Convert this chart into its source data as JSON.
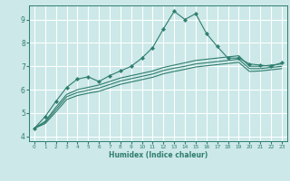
{
  "background_color": "#cce8e8",
  "grid_color": "#ffffff",
  "line_color": "#2e7d6e",
  "xlabel": "Humidex (Indice chaleur)",
  "xlim": [
    -0.5,
    23.5
  ],
  "ylim": [
    3.8,
    9.6
  ],
  "yticks": [
    4,
    5,
    6,
    7,
    8,
    9
  ],
  "xticks": [
    0,
    1,
    2,
    3,
    4,
    5,
    6,
    7,
    8,
    9,
    10,
    11,
    12,
    13,
    14,
    15,
    16,
    17,
    18,
    19,
    20,
    21,
    22,
    23
  ],
  "main_line_x": [
    0,
    1,
    2,
    3,
    4,
    5,
    6,
    7,
    8,
    9,
    10,
    11,
    12,
    13,
    14,
    15,
    16,
    17,
    18,
    19,
    20,
    21,
    22,
    23
  ],
  "main_line_y": [
    4.35,
    4.85,
    5.5,
    6.1,
    6.45,
    6.55,
    6.35,
    6.6,
    6.8,
    7.0,
    7.35,
    7.8,
    8.6,
    9.35,
    9.0,
    9.25,
    8.4,
    7.85,
    7.35,
    7.35,
    7.1,
    7.05,
    7.0,
    7.15
  ],
  "line2_x": [
    0,
    1,
    2,
    3,
    4,
    5,
    6,
    7,
    8,
    9,
    10,
    11,
    12,
    13,
    14,
    15,
    16,
    17,
    18,
    19,
    20,
    21,
    22,
    23
  ],
  "line2_y": [
    4.35,
    4.65,
    5.25,
    5.8,
    6.0,
    6.1,
    6.2,
    6.35,
    6.5,
    6.6,
    6.7,
    6.8,
    6.95,
    7.05,
    7.15,
    7.25,
    7.3,
    7.35,
    7.4,
    7.45,
    7.0,
    7.0,
    7.05,
    7.1
  ],
  "line3_x": [
    0,
    1,
    2,
    3,
    4,
    5,
    6,
    7,
    8,
    9,
    10,
    11,
    12,
    13,
    14,
    15,
    16,
    17,
    18,
    19,
    20,
    21,
    22,
    23
  ],
  "line3_y": [
    4.35,
    4.6,
    5.15,
    5.7,
    5.88,
    5.98,
    6.07,
    6.22,
    6.37,
    6.47,
    6.57,
    6.67,
    6.82,
    6.92,
    7.0,
    7.1,
    7.15,
    7.2,
    7.25,
    7.3,
    6.9,
    6.9,
    6.95,
    7.0
  ],
  "line4_x": [
    0,
    1,
    2,
    3,
    4,
    5,
    6,
    7,
    8,
    9,
    10,
    11,
    12,
    13,
    14,
    15,
    16,
    17,
    18,
    19,
    20,
    21,
    22,
    23
  ],
  "line4_y": [
    4.35,
    4.55,
    5.05,
    5.58,
    5.75,
    5.85,
    5.93,
    6.08,
    6.23,
    6.33,
    6.43,
    6.53,
    6.68,
    6.78,
    6.87,
    6.97,
    7.02,
    7.07,
    7.12,
    7.17,
    6.78,
    6.8,
    6.85,
    6.9
  ]
}
